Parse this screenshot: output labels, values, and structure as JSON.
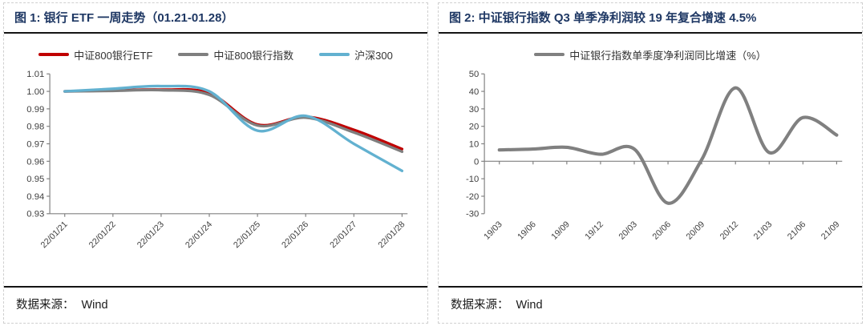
{
  "colors": {
    "title": "#1f3864",
    "axis": "#808080",
    "tick_label": "#404040",
    "etf_red": "#c00000",
    "index_gray": "#7f7f7f",
    "hs300_blue": "#62b1d0"
  },
  "panels": [
    {
      "title": "图 1:  银行 ETF 一周走势（01.21-01.28）",
      "source_label": "数据来源：",
      "source_value": "Wind"
    },
    {
      "title": "图 2:  中证银行指数 Q3 单季净利润较 19 年复合增速 4.5%",
      "source_label": "数据来源：",
      "source_value": "Wind"
    }
  ],
  "chart_data": [
    {
      "type": "line",
      "title": "银行 ETF 一周走势（01.21-01.28）",
      "categories": [
        "22/01/21",
        "22/01/22",
        "22/01/23",
        "22/01/24",
        "22/01/25",
        "22/01/26",
        "22/01/27",
        "22/01/28"
      ],
      "series": [
        {
          "name": "中证800银行ETF",
          "color": "#c00000",
          "values": [
            1.0,
            1.0005,
            1.001,
            0.999,
            0.981,
            0.9855,
            0.978,
            0.967
          ]
        },
        {
          "name": "中证800银行指数",
          "color": "#7f7f7f",
          "values": [
            1.0,
            1.0003,
            1.0007,
            0.998,
            0.9805,
            0.985,
            0.9765,
            0.9655
          ]
        },
        {
          "name": "沪深300",
          "color": "#62b1d0",
          "values": [
            1.0,
            1.0015,
            1.003,
            1.0,
            0.9775,
            0.986,
            0.97,
            0.9545
          ]
        }
      ],
      "ylim": [
        0.93,
        1.01
      ],
      "ytick_labels": [
        "1.01",
        "1.00",
        "0.99",
        "0.98",
        "0.97",
        "0.96",
        "0.95",
        "0.94",
        "0.93"
      ],
      "x_axis_at": 0.93,
      "grid": false,
      "legend_position": "top",
      "smoothed": true
    },
    {
      "type": "line",
      "title": "中证银行指数 Q3 单季净利润较 19 年复合增速 4.5%",
      "categories": [
        "19/03",
        "19/06",
        "19/09",
        "19/12",
        "20/03",
        "20/06",
        "20/09",
        "20/12",
        "21/03",
        "21/06",
        "21/09"
      ],
      "series": [
        {
          "name": "中证银行指数单季度净利润同比增速（%）",
          "color": "#808080",
          "values": [
            6.5,
            7,
            8,
            4,
            7,
            -24,
            1,
            42,
            5,
            25,
            15
          ]
        }
      ],
      "ylim": [
        -30,
        50
      ],
      "ytick_labels": [
        "50",
        "40",
        "30",
        "20",
        "10",
        "0",
        "-10",
        "-20",
        "-30"
      ],
      "x_axis_at": 0,
      "grid": false,
      "legend_position": "top",
      "smoothed": true
    }
  ]
}
